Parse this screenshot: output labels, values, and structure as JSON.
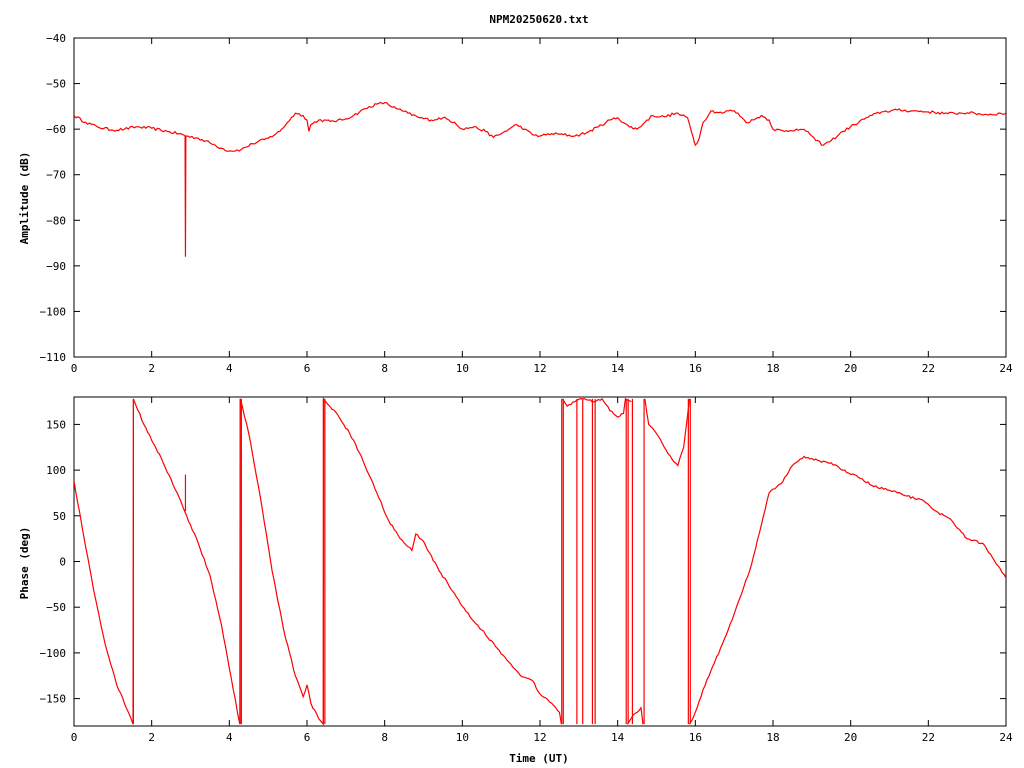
{
  "title": "NPM20250620.txt",
  "colors": {
    "series": "#ff0000",
    "axes": "#000000",
    "background": "#ffffff"
  },
  "chart_data": [
    {
      "type": "line",
      "title": "NPM20250620.txt",
      "xlabel": "",
      "ylabel": "Amplitude (dB)",
      "xlim": [
        0,
        24
      ],
      "ylim": [
        -110,
        -40
      ],
      "xticks": [
        0,
        2,
        4,
        6,
        8,
        10,
        12,
        14,
        16,
        18,
        20,
        22,
        24
      ],
      "yticks": [
        -110,
        -100,
        -90,
        -80,
        -70,
        -60,
        -50,
        -40
      ],
      "grid": false,
      "series": [
        {
          "color": "#ff0000",
          "points": [
            [
              0.0,
              -57.0
            ],
            [
              0.3,
              -58.5
            ],
            [
              0.6,
              -59.5
            ],
            [
              1.0,
              -60.2
            ],
            [
              1.3,
              -60.0
            ],
            [
              1.6,
              -59.5
            ],
            [
              2.0,
              -59.8
            ],
            [
              2.4,
              -60.5
            ],
            [
              2.8,
              -61.2
            ],
            [
              2.86,
              -61.5
            ],
            [
              2.87,
              -88.0
            ],
            [
              2.88,
              -61.5
            ],
            [
              3.2,
              -62.0
            ],
            [
              3.5,
              -63.0
            ],
            [
              3.8,
              -64.2
            ],
            [
              4.0,
              -64.8
            ],
            [
              4.3,
              -64.5
            ],
            [
              4.6,
              -63.2
            ],
            [
              5.0,
              -62.0
            ],
            [
              5.3,
              -60.5
            ],
            [
              5.5,
              -58.5
            ],
            [
              5.7,
              -56.5
            ],
            [
              5.9,
              -57.0
            ],
            [
              6.0,
              -58.0
            ],
            [
              6.05,
              -60.5
            ],
            [
              6.1,
              -59.0
            ],
            [
              6.3,
              -58.0
            ],
            [
              6.6,
              -58.3
            ],
            [
              6.9,
              -58.0
            ],
            [
              7.2,
              -57.0
            ],
            [
              7.5,
              -55.5
            ],
            [
              7.8,
              -54.5
            ],
            [
              8.0,
              -54.2
            ],
            [
              8.3,
              -55.5
            ],
            [
              8.6,
              -56.5
            ],
            [
              8.9,
              -57.5
            ],
            [
              9.2,
              -58.0
            ],
            [
              9.5,
              -57.5
            ],
            [
              9.8,
              -58.5
            ],
            [
              10.0,
              -60.0
            ],
            [
              10.3,
              -59.5
            ],
            [
              10.6,
              -60.5
            ],
            [
              10.8,
              -61.8
            ],
            [
              11.0,
              -61.0
            ],
            [
              11.2,
              -60.0
            ],
            [
              11.4,
              -59.0
            ],
            [
              11.6,
              -60.0
            ],
            [
              11.8,
              -61.2
            ],
            [
              12.0,
              -61.5
            ],
            [
              12.3,
              -61.0
            ],
            [
              12.6,
              -61.2
            ],
            [
              12.9,
              -61.5
            ],
            [
              13.2,
              -60.8
            ],
            [
              13.5,
              -59.5
            ],
            [
              13.8,
              -58.0
            ],
            [
              14.0,
              -57.5
            ],
            [
              14.3,
              -59.5
            ],
            [
              14.5,
              -60.0
            ],
            [
              14.7,
              -58.5
            ],
            [
              14.9,
              -57.0
            ],
            [
              15.2,
              -57.3
            ],
            [
              15.5,
              -56.5
            ],
            [
              15.8,
              -57.5
            ],
            [
              15.95,
              -62.0
            ],
            [
              16.0,
              -63.5
            ],
            [
              16.1,
              -62.0
            ],
            [
              16.2,
              -58.5
            ],
            [
              16.4,
              -56.0
            ],
            [
              16.7,
              -56.5
            ],
            [
              16.9,
              -55.8
            ],
            [
              17.1,
              -56.5
            ],
            [
              17.3,
              -58.5
            ],
            [
              17.5,
              -58.0
            ],
            [
              17.7,
              -57.0
            ],
            [
              17.9,
              -58.0
            ],
            [
              18.0,
              -60.0
            ],
            [
              18.3,
              -60.5
            ],
            [
              18.6,
              -60.0
            ],
            [
              18.9,
              -60.5
            ],
            [
              19.1,
              -62.5
            ],
            [
              19.3,
              -63.5
            ],
            [
              19.5,
              -62.5
            ],
            [
              19.8,
              -60.5
            ],
            [
              20.1,
              -59.0
            ],
            [
              20.4,
              -57.5
            ],
            [
              20.8,
              -56.2
            ],
            [
              21.2,
              -55.8
            ],
            [
              21.6,
              -56.0
            ],
            [
              22.0,
              -56.2
            ],
            [
              22.5,
              -56.6
            ],
            [
              23.0,
              -56.4
            ],
            [
              23.5,
              -56.8
            ],
            [
              24.0,
              -56.5
            ]
          ]
        }
      ]
    },
    {
      "type": "line",
      "title": "",
      "xlabel": "Time (UT)",
      "ylabel": "Phase (deg)",
      "xlim": [
        0,
        24
      ],
      "ylim": [
        -180,
        180
      ],
      "xticks": [
        0,
        2,
        4,
        6,
        8,
        10,
        12,
        14,
        16,
        18,
        20,
        22,
        24
      ],
      "yticks": [
        -150,
        -100,
        -50,
        0,
        50,
        100,
        150
      ],
      "grid": false,
      "series": [
        {
          "color": "#ff0000",
          "points": [
            [
              0.0,
              88
            ],
            [
              0.2,
              40
            ],
            [
              0.5,
              -30
            ],
            [
              0.8,
              -90
            ],
            [
              1.1,
              -135
            ],
            [
              1.4,
              -165
            ],
            [
              1.52,
              -178
            ],
            [
              1.53,
              178
            ],
            [
              1.8,
              150
            ],
            [
              2.1,
              125
            ],
            [
              2.5,
              90
            ],
            [
              2.85,
              55
            ],
            [
              3.2,
              20
            ],
            [
              3.5,
              -15
            ],
            [
              3.8,
              -70
            ],
            [
              4.1,
              -140
            ],
            [
              4.27,
              -178
            ],
            [
              4.28,
              178
            ],
            [
              4.5,
              140
            ],
            [
              4.8,
              70
            ],
            [
              5.1,
              -10
            ],
            [
              5.4,
              -75
            ],
            [
              5.7,
              -125
            ],
            [
              5.9,
              -148
            ],
            [
              6.0,
              -135
            ],
            [
              6.1,
              -155
            ],
            [
              6.3,
              -172
            ],
            [
              6.42,
              -178
            ],
            [
              6.43,
              178
            ],
            [
              6.8,
              160
            ],
            [
              7.1,
              140
            ],
            [
              7.4,
              115
            ],
            [
              7.8,
              75
            ],
            [
              8.1,
              45
            ],
            [
              8.4,
              25
            ],
            [
              8.7,
              12
            ],
            [
              8.8,
              30
            ],
            [
              9.0,
              22
            ],
            [
              9.4,
              -10
            ],
            [
              9.8,
              -35
            ],
            [
              10.1,
              -55
            ],
            [
              10.5,
              -75
            ],
            [
              10.9,
              -95
            ],
            [
              11.2,
              -110
            ],
            [
              11.5,
              -125
            ],
            [
              11.8,
              -130
            ],
            [
              12.0,
              -145
            ],
            [
              12.3,
              -155
            ],
            [
              12.5,
              -165
            ],
            [
              12.55,
              -178
            ]
          ]
        },
        {
          "color": "#ff0000",
          "points": [
            [
              12.58,
              178
            ],
            [
              12.7,
              170
            ],
            [
              12.9,
              175
            ],
            [
              13.1,
              178
            ],
            [
              13.4,
              175
            ],
            [
              13.6,
              178
            ],
            [
              13.8,
              165
            ],
            [
              14.0,
              158
            ],
            [
              14.15,
              162
            ],
            [
              14.2,
              178
            ],
            [
              14.35,
              175
            ]
          ]
        },
        {
          "color": "#ff0000",
          "points": [
            [
              14.25,
              -178
            ],
            [
              14.4,
              -168
            ],
            [
              14.6,
              -160
            ],
            [
              14.65,
              -178
            ]
          ]
        },
        {
          "color": "#ff0000",
          "points": [
            [
              14.7,
              178
            ],
            [
              14.8,
              150
            ],
            [
              15.0,
              140
            ],
            [
              15.2,
              125
            ],
            [
              15.4,
              112
            ],
            [
              15.55,
              105
            ],
            [
              15.7,
              125
            ],
            [
              15.8,
              160
            ],
            [
              15.85,
              178
            ]
          ]
        },
        {
          "color": "#ff0000",
          "points": [
            [
              15.85,
              -178
            ],
            [
              16.0,
              -165
            ],
            [
              16.2,
              -140
            ],
            [
              16.5,
              -110
            ],
            [
              16.8,
              -80
            ],
            [
              17.1,
              -45
            ],
            [
              17.4,
              -10
            ],
            [
              17.7,
              40
            ],
            [
              17.9,
              75
            ],
            [
              18.2,
              85
            ],
            [
              18.5,
              105
            ],
            [
              18.8,
              115
            ],
            [
              19.2,
              110
            ],
            [
              19.5,
              108
            ],
            [
              19.8,
              100
            ],
            [
              20.2,
              92
            ],
            [
              20.6,
              82
            ],
            [
              21.0,
              78
            ],
            [
              21.4,
              72
            ],
            [
              21.8,
              68
            ],
            [
              22.2,
              55
            ],
            [
              22.6,
              45
            ],
            [
              23.0,
              25
            ],
            [
              23.4,
              20
            ],
            [
              23.8,
              -5
            ],
            [
              24.0,
              -18
            ]
          ]
        }
      ],
      "verticals": [
        {
          "x": 1.53,
          "y1": -178,
          "y2": 178
        },
        {
          "x": 4.28,
          "y1": -178,
          "y2": 178
        },
        {
          "x": 4.31,
          "y1": -178,
          "y2": 178
        },
        {
          "x": 6.42,
          "y1": -178,
          "y2": 178
        },
        {
          "x": 6.46,
          "y1": -178,
          "y2": 178
        },
        {
          "x": 12.56,
          "y1": -178,
          "y2": 178
        },
        {
          "x": 12.6,
          "y1": -178,
          "y2": 178
        },
        {
          "x": 12.95,
          "y1": -178,
          "y2": 178
        },
        {
          "x": 13.1,
          "y1": -178,
          "y2": 178
        },
        {
          "x": 13.35,
          "y1": -178,
          "y2": 178
        },
        {
          "x": 13.42,
          "y1": -178,
          "y2": 178
        },
        {
          "x": 14.22,
          "y1": -178,
          "y2": 178
        },
        {
          "x": 14.27,
          "y1": -178,
          "y2": 178
        },
        {
          "x": 14.38,
          "y1": -178,
          "y2": 178
        },
        {
          "x": 14.68,
          "y1": -178,
          "y2": 178
        },
        {
          "x": 15.82,
          "y1": -178,
          "y2": 178
        },
        {
          "x": 15.87,
          "y1": -178,
          "y2": 178
        },
        {
          "x": 2.87,
          "y1": 55,
          "y2": 95
        }
      ]
    }
  ]
}
